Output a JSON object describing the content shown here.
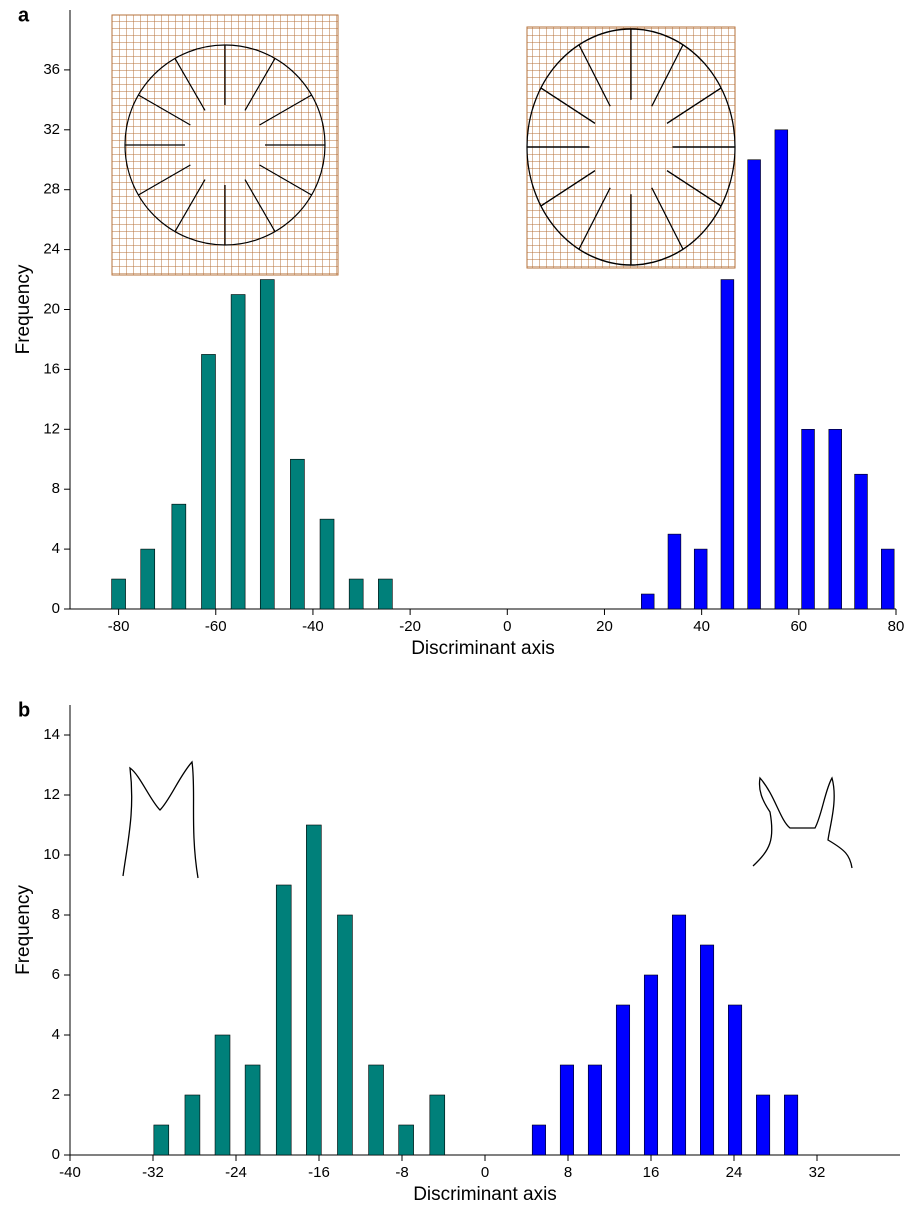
{
  "chart_data": [
    {
      "type": "bar",
      "label": "a",
      "xlabel": "Discriminant axis",
      "ylabel": "Frequency",
      "xlim": [
        -90,
        80
      ],
      "xticks": [
        -80,
        -60,
        -40,
        -20,
        0,
        20,
        40,
        60,
        80
      ],
      "ylim": [
        0,
        40
      ],
      "yticks": [
        0,
        4,
        8,
        12,
        16,
        20,
        24,
        28,
        32,
        36
      ],
      "series": [
        {
          "color": "#00807a",
          "x": [
            -80,
            -74,
            -67.6,
            -61.5,
            -55.4,
            -49.4,
            -43.2,
            -37.1,
            -31.1,
            -25.1
          ],
          "values": [
            2,
            4,
            7,
            17,
            21,
            22,
            10,
            6,
            2,
            2
          ]
        },
        {
          "color": "#0000ff",
          "x": [
            28.9,
            34.4,
            39.8,
            45.3,
            50.8,
            56.4,
            61.9,
            67.5,
            72.8,
            78.3
          ],
          "values": [
            1,
            5,
            4,
            22,
            30,
            32,
            12,
            12,
            9,
            4
          ]
        }
      ]
    },
    {
      "type": "bar",
      "label": "b",
      "xlabel": "Discriminant axis",
      "ylabel": "Frequency",
      "xlim": [
        -40,
        40
      ],
      "xticks": [
        -40,
        -32,
        -24,
        -16,
        -8,
        0,
        8,
        16,
        24,
        32
      ],
      "ylim": [
        0,
        15
      ],
      "yticks": [
        0,
        2,
        4,
        6,
        8,
        10,
        12,
        14
      ],
      "series": [
        {
          "color": "#00807a",
          "x": [
            -31.2,
            -28.2,
            -25.3,
            -22.4,
            -19.4,
            -16.5,
            -13.5,
            -10.5,
            -7.6,
            -4.6
          ],
          "values": [
            1,
            2,
            4,
            3,
            9,
            11,
            8,
            3,
            1,
            2
          ]
        },
        {
          "color": "#0000ff",
          "x": [
            5.2,
            7.9,
            10.6,
            13.3,
            16.0,
            18.7,
            21.4,
            24.1,
            26.8,
            29.5
          ],
          "values": [
            1,
            3,
            3,
            5,
            6,
            8,
            7,
            5,
            2,
            2
          ]
        }
      ]
    }
  ]
}
